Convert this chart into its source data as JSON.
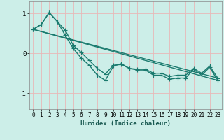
{
  "xlabel": "Humidex (Indice chaleur)",
  "background_color": "#cceee8",
  "grid_color": "#b0ddd8",
  "line_color": "#1a7a6e",
  "xlim": [
    -0.5,
    23.5
  ],
  "ylim": [
    -1.4,
    1.3
  ],
  "yticks": [
    -1,
    0,
    1
  ],
  "xticks": [
    0,
    1,
    2,
    3,
    4,
    5,
    6,
    7,
    8,
    9,
    10,
    11,
    12,
    13,
    14,
    15,
    16,
    17,
    18,
    19,
    20,
    21,
    22,
    23
  ],
  "line1_x": [
    0,
    1,
    2,
    3,
    4,
    5,
    6,
    7,
    8,
    9,
    10,
    11,
    12,
    13,
    14,
    15,
    16,
    17,
    18,
    19,
    20,
    21,
    22,
    23
  ],
  "line1_y": [
    0.6,
    0.72,
    1.02,
    0.8,
    0.58,
    0.2,
    0.02,
    -0.18,
    -0.38,
    -0.52,
    -0.3,
    -0.28,
    -0.38,
    -0.4,
    -0.4,
    -0.5,
    -0.5,
    -0.58,
    -0.55,
    -0.55,
    -0.38,
    -0.5,
    -0.32,
    -0.62
  ],
  "line2_x": [
    0,
    1,
    2,
    3,
    4,
    5,
    6,
    7,
    8,
    9,
    10,
    11,
    12,
    13,
    14,
    15,
    16,
    17,
    18,
    19,
    20,
    21,
    22,
    23
  ],
  "line2_y": [
    0.6,
    0.72,
    1.02,
    0.8,
    0.45,
    0.12,
    -0.12,
    -0.3,
    -0.55,
    -0.68,
    -0.32,
    -0.26,
    -0.38,
    -0.42,
    -0.42,
    -0.55,
    -0.55,
    -0.65,
    -0.62,
    -0.62,
    -0.4,
    -0.55,
    -0.35,
    -0.68
  ],
  "line3_x": [
    0,
    23
  ],
  "line3_y": [
    0.6,
    -0.62
  ],
  "line4_x": [
    0,
    23
  ],
  "line4_y": [
    0.6,
    -0.68
  ],
  "marker_size": 2.5,
  "line_width": 1.0
}
